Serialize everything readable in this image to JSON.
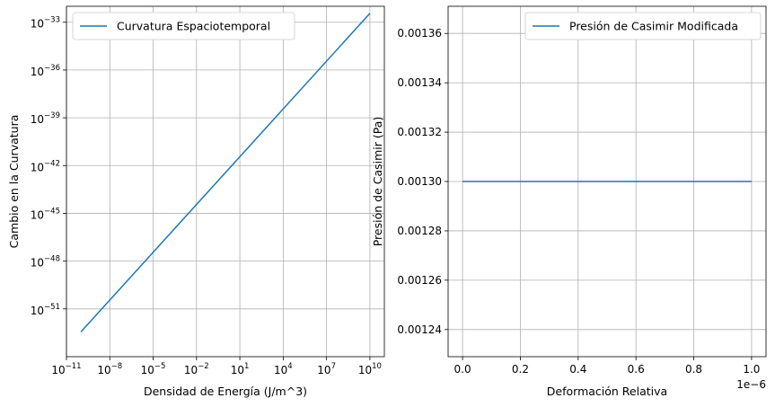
{
  "chart_data": [
    {
      "type": "line",
      "xscale": "log",
      "yscale": "log",
      "xlabel": "Densidad de Energía (J/m^3)",
      "ylabel": "Cambio en la Curvatura",
      "xlim": [
        1e-11,
        100000000000.0
      ],
      "ylim": [
        1e-54,
        1e-32
      ],
      "x_ticks": [
        {
          "base": "10",
          "exp": "−11"
        },
        {
          "base": "10",
          "exp": "−8"
        },
        {
          "base": "10",
          "exp": "−5"
        },
        {
          "base": "10",
          "exp": "−2"
        },
        {
          "base": "10",
          "exp": "1"
        },
        {
          "base": "10",
          "exp": "4"
        },
        {
          "base": "10",
          "exp": "7"
        },
        {
          "base": "10",
          "exp": "10"
        }
      ],
      "y_ticks": [
        {
          "base": "10",
          "exp": "−51"
        },
        {
          "base": "10",
          "exp": "−48"
        },
        {
          "base": "10",
          "exp": "−45"
        },
        {
          "base": "10",
          "exp": "−42"
        },
        {
          "base": "10",
          "exp": "−39"
        },
        {
          "base": "10",
          "exp": "−36"
        },
        {
          "base": "10",
          "exp": "−33"
        }
      ],
      "grid": true,
      "legend_position": "upper-left",
      "series": [
        {
          "name": "Curvatura Espaciotemporal",
          "color": "#1f77b4",
          "x": [
            1e-10,
            10000000000.0
          ],
          "y": [
            3.6e-53,
            3.6e-33
          ]
        }
      ]
    },
    {
      "type": "line",
      "xscale": "linear",
      "yscale": "linear",
      "xlabel": "Deformación Relativa",
      "ylabel": "Presión de Casimir (Pa)",
      "x_offset_label": "1e−6",
      "xlim": [
        -0.05,
        1.05
      ],
      "ylim": [
        0.001229,
        0.001371
      ],
      "x_ticks": [
        "0.0",
        "0.2",
        "0.4",
        "0.6",
        "0.8",
        "1.0"
      ],
      "y_ticks": [
        "0.00124",
        "0.00126",
        "0.00128",
        "0.00130",
        "0.00132",
        "0.00134",
        "0.00136"
      ],
      "grid": true,
      "legend_position": "upper-right",
      "series": [
        {
          "name": "Presión de Casimir Modificada",
          "color": "#1f77b4",
          "x": [
            0.0,
            1.0
          ],
          "y": [
            0.0013,
            0.0013
          ]
        }
      ]
    }
  ]
}
